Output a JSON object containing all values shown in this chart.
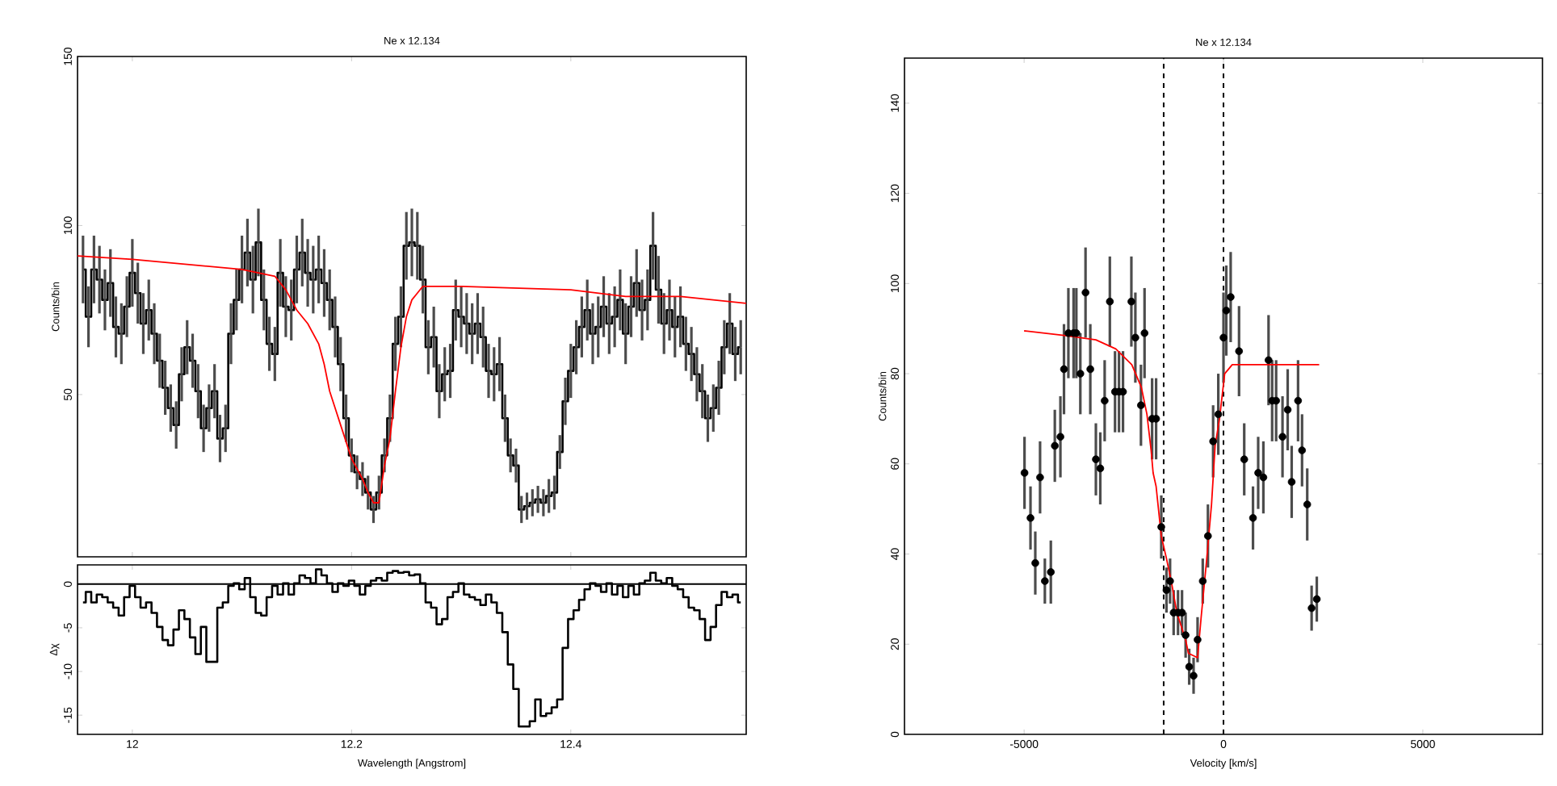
{
  "chart_data": [
    {
      "type": "step",
      "title": "Ne x 12.134",
      "ylabel": "Counts/bin",
      "xlim": [
        11.95,
        12.56
      ],
      "ylim": [
        2,
        150
      ],
      "xticks": [
        12,
        12.2,
        12.4
      ],
      "yticks": [
        50,
        100,
        150
      ],
      "tick_labels": "y",
      "series": [
        {
          "color": "#000000",
          "x": [
            11.955,
            11.96,
            11.965,
            11.97,
            11.975,
            11.98,
            11.985,
            11.99,
            11.995,
            12.0,
            12.005,
            12.01,
            12.015,
            12.02,
            12.025,
            12.03,
            12.035,
            12.04,
            12.045,
            12.05,
            12.055,
            12.06,
            12.065,
            12.07,
            12.075,
            12.08,
            12.085,
            12.09,
            12.095,
            12.1,
            12.105,
            12.11,
            12.115,
            12.12,
            12.125,
            12.13,
            12.135,
            12.14,
            12.145,
            12.15,
            12.155,
            12.16,
            12.165,
            12.17,
            12.175,
            12.18,
            12.185,
            12.19,
            12.195,
            12.2,
            12.205,
            12.21,
            12.215,
            12.22,
            12.225,
            12.23,
            12.235,
            12.24,
            12.245,
            12.25,
            12.255,
            12.26,
            12.265,
            12.27,
            12.275,
            12.28,
            12.285,
            12.29,
            12.295,
            12.3,
            12.305,
            12.31,
            12.315,
            12.32,
            12.325,
            12.33,
            12.335,
            12.34,
            12.345,
            12.35,
            12.355,
            12.36,
            12.365,
            12.37,
            12.375,
            12.38,
            12.385,
            12.39,
            12.395,
            12.4,
            12.405,
            12.41,
            12.415,
            12.42,
            12.425,
            12.43,
            12.435,
            12.44,
            12.445,
            12.45,
            12.455,
            12.46,
            12.465,
            12.47,
            12.475,
            12.48,
            12.485,
            12.49,
            12.495,
            12.5,
            12.505,
            12.51,
            12.515,
            12.52,
            12.525,
            12.53,
            12.535,
            12.54,
            12.545,
            12.55,
            12.555
          ],
          "values": [
            87,
            73,
            87,
            84,
            78,
            83,
            70,
            68,
            76,
            86,
            80,
            71,
            75,
            68,
            60,
            52,
            46,
            41,
            56,
            64,
            60,
            51,
            40,
            46,
            51,
            37,
            40,
            68,
            78,
            87,
            92,
            84,
            95,
            78,
            65,
            62,
            86,
            76,
            75,
            87,
            92,
            86,
            84,
            87,
            83,
            78,
            70,
            59,
            43,
            32,
            27,
            25,
            21,
            16,
            21,
            32,
            43,
            65,
            73,
            94,
            95,
            94,
            84,
            64,
            67,
            51,
            56,
            57,
            75,
            73,
            71,
            68,
            71,
            67,
            57,
            56,
            59,
            43,
            32,
            29,
            16,
            17,
            18,
            19,
            18,
            20,
            21,
            33,
            48,
            57,
            64,
            70,
            75,
            68,
            70,
            76,
            71,
            73,
            78,
            68,
            76,
            83,
            75,
            78,
            94,
            81,
            71,
            75,
            70,
            73,
            65,
            62,
            56,
            51,
            43,
            46,
            52,
            64,
            71,
            62,
            64
          ],
          "errors": [
            10,
            9,
            10,
            10,
            9,
            10,
            9,
            9,
            9,
            10,
            9,
            9,
            9,
            9,
            8,
            8,
            7,
            7,
            8,
            8,
            8,
            8,
            7,
            7,
            8,
            7,
            7,
            9,
            9,
            10,
            10,
            10,
            10,
            9,
            8,
            8,
            10,
            9,
            9,
            10,
            10,
            10,
            10,
            10,
            10,
            9,
            9,
            8,
            7,
            5,
            5,
            5,
            5,
            4,
            5,
            5,
            7,
            8,
            9,
            10,
            10,
            10,
            10,
            8,
            9,
            8,
            8,
            8,
            9,
            9,
            9,
            9,
            9,
            9,
            8,
            8,
            8,
            7,
            5,
            5,
            4,
            4,
            4,
            4,
            4,
            5,
            5,
            5,
            7,
            8,
            8,
            9,
            9,
            9,
            9,
            9,
            9,
            9,
            9,
            9,
            9,
            10,
            9,
            9,
            10,
            10,
            9,
            9,
            9,
            9,
            8,
            8,
            8,
            8,
            7,
            7,
            8,
            8,
            9,
            8,
            8
          ]
        },
        {
          "type": "line",
          "color": "#ff0000",
          "x": [
            11.95,
            12.0,
            12.1,
            12.13,
            12.14,
            12.15,
            12.16,
            12.17,
            12.175,
            12.18,
            12.19,
            12.2,
            12.21,
            12.215,
            12.22,
            12.225,
            12.23,
            12.235,
            12.24,
            12.245,
            12.25,
            12.255,
            12.26,
            12.265,
            12.3,
            12.4,
            12.45,
            12.5,
            12.56
          ],
          "values": [
            91,
            90,
            87,
            85,
            81,
            75,
            71,
            65,
            59,
            51,
            41,
            31,
            25,
            21,
            18,
            18,
            29,
            37,
            51,
            64,
            73,
            78,
            80,
            82,
            82,
            81,
            79,
            79,
            77
          ]
        }
      ]
    },
    {
      "type": "step",
      "xlabel": "Wavelength [Angstrom]",
      "ylabel": "Δχ",
      "xlim": [
        11.95,
        12.56
      ],
      "ylim": [
        -17.2,
        2.2
      ],
      "xticks": [
        12,
        12.2,
        12.4
      ],
      "yticks": [
        -15,
        -10,
        -5,
        0
      ],
      "ref_lines": [
        {
          "axis": "y",
          "value": 0,
          "color": "#000000",
          "line_style": "solid"
        }
      ],
      "series": [
        {
          "color": "#000000",
          "x": [
            11.955,
            11.96,
            11.965,
            11.97,
            11.975,
            11.98,
            11.985,
            11.99,
            11.995,
            12.0,
            12.005,
            12.01,
            12.015,
            12.02,
            12.025,
            12.03,
            12.035,
            12.04,
            12.045,
            12.05,
            12.055,
            12.06,
            12.065,
            12.07,
            12.075,
            12.08,
            12.085,
            12.09,
            12.095,
            12.1,
            12.105,
            12.11,
            12.115,
            12.12,
            12.125,
            12.13,
            12.135,
            12.14,
            12.145,
            12.15,
            12.155,
            12.16,
            12.165,
            12.17,
            12.175,
            12.18,
            12.185,
            12.19,
            12.195,
            12.2,
            12.205,
            12.21,
            12.215,
            12.22,
            12.225,
            12.23,
            12.235,
            12.24,
            12.245,
            12.25,
            12.255,
            12.26,
            12.265,
            12.27,
            12.275,
            12.28,
            12.285,
            12.29,
            12.295,
            12.3,
            12.305,
            12.31,
            12.315,
            12.32,
            12.325,
            12.33,
            12.335,
            12.34,
            12.345,
            12.35,
            12.355,
            12.36,
            12.365,
            12.37,
            12.375,
            12.38,
            12.385,
            12.39,
            12.395,
            12.4,
            12.405,
            12.41,
            12.415,
            12.42,
            12.425,
            12.43,
            12.435,
            12.44,
            12.445,
            12.45,
            12.455,
            12.46,
            12.465,
            12.47,
            12.475,
            12.48,
            12.485,
            12.49,
            12.495,
            12.5,
            12.505,
            12.51,
            12.515,
            12.52,
            12.525,
            12.53,
            12.535,
            12.54,
            12.545,
            12.55,
            12.555
          ],
          "values": [
            -2.1,
            -0.9,
            -2.1,
            -1.2,
            -1.5,
            -2.1,
            -2.7,
            -3.6,
            -1.5,
            -0.2,
            -1.5,
            -2.7,
            -2.1,
            -3.3,
            -4.9,
            -6.4,
            -7.0,
            -5.2,
            -3.0,
            -4.0,
            -6.1,
            -8.0,
            -4.9,
            -8.9,
            -8.9,
            -2.7,
            -2.1,
            -0.2,
            0.1,
            -0.6,
            0.7,
            -1.5,
            -3.3,
            -3.6,
            -1.5,
            -0.2,
            -1.2,
            0.1,
            -1.2,
            0.1,
            1.0,
            0.7,
            0.1,
            1.7,
            1.0,
            0.1,
            -0.9,
            0.1,
            -0.2,
            0.4,
            -0.2,
            -1.2,
            -0.2,
            0.4,
            0.7,
            0.4,
            1.3,
            1.5,
            1.3,
            1.4,
            1.0,
            1.1,
            0.1,
            -2.1,
            -2.7,
            -4.6,
            -4.0,
            -1.5,
            -0.9,
            0.1,
            -1.2,
            -1.5,
            -1.8,
            -2.4,
            -1.2,
            -2.1,
            -3.3,
            -5.5,
            -9.2,
            -12.0,
            -16.3,
            -16.3,
            -15.7,
            -13.2,
            -15.1,
            -14.8,
            -14.1,
            -13.2,
            -7.3,
            -4.0,
            -3.0,
            -1.8,
            -0.6,
            0.1,
            -0.2,
            -0.9,
            0.1,
            -1.2,
            -0.2,
            -1.5,
            -0.2,
            -1.2,
            0.1,
            0.4,
            1.3,
            0.4,
            0.1,
            0.7,
            -0.2,
            -0.6,
            -1.5,
            -2.7,
            -3.0,
            -4.0,
            -6.4,
            -4.9,
            -2.4,
            -0.9,
            -1.5,
            -1.2,
            -2.1
          ]
        }
      ]
    },
    {
      "type": "scatter",
      "title": "Ne x 12.134",
      "xlabel": "Velocity [km/s]",
      "ylabel": "Counts/bin",
      "xlim": [
        -8000,
        8000
      ],
      "ylim": [
        0,
        150
      ],
      "xticks": [
        -5000,
        0,
        5000
      ],
      "yticks": [
        0,
        20,
        40,
        60,
        80,
        100,
        120,
        140
      ],
      "ref_lines": [
        {
          "axis": "x",
          "value": -1500,
          "color": "#000000",
          "line_style": "dashed"
        },
        {
          "axis": "x",
          "value": 0,
          "color": "#000000",
          "line_style": "dashed"
        }
      ],
      "series": [
        {
          "color": "#000000",
          "marker": "circle",
          "x": [
            -4990,
            -4840,
            -4720,
            -4600,
            -4480,
            -4330,
            -4230,
            -4090,
            -4000,
            -3890,
            -3760,
            -3690,
            -3590,
            -3460,
            -3340,
            -3200,
            -3090,
            -2980,
            -2850,
            -2720,
            -2620,
            -2520,
            -2310,
            -2210,
            -2070,
            -1980,
            -1790,
            -1690,
            -1560,
            -1430,
            -1340,
            -1250,
            -1140,
            -1040,
            -950,
            -860,
            -750,
            -650,
            -520,
            -390,
            -260,
            -130,
            0,
            70,
            180,
            390,
            520,
            740,
            870,
            1000,
            1130,
            1220,
            1320,
            1480,
            1610,
            1710,
            1870,
            1970,
            2100,
            2210,
            2340
          ],
          "values": [
            58,
            48,
            38,
            57,
            34,
            36,
            64,
            66,
            81,
            89,
            89,
            89,
            80,
            98,
            81,
            61,
            59,
            74,
            96,
            76,
            76,
            76,
            96,
            88,
            73,
            89,
            70,
            70,
            46,
            32,
            34,
            27,
            27,
            27,
            22,
            15,
            13,
            21,
            34,
            44,
            65,
            71,
            88,
            94,
            97,
            85,
            61,
            48,
            58,
            57,
            83,
            74,
            74,
            66,
            72,
            56,
            74,
            63,
            51,
            28,
            30
          ],
          "errors": [
            8,
            7,
            7,
            8,
            5,
            7,
            8,
            9,
            10,
            10,
            10,
            10,
            9,
            10,
            10,
            8,
            8,
            9,
            10,
            9,
            9,
            9,
            10,
            10,
            9,
            10,
            9,
            9,
            7,
            5,
            5,
            5,
            5,
            5,
            5,
            4,
            4,
            5,
            5,
            7,
            8,
            9,
            10,
            10,
            10,
            10,
            8,
            7,
            8,
            8,
            10,
            9,
            9,
            9,
            9,
            8,
            9,
            8,
            8,
            5,
            5
          ]
        },
        {
          "type": "line",
          "color": "#ff0000",
          "x": [
            -5000,
            -4000,
            -3200,
            -2700,
            -2300,
            -2060,
            -1920,
            -1815,
            -1765,
            -1690,
            -1560,
            -1430,
            -1300,
            -1170,
            -950,
            -880,
            -650,
            -560,
            -430,
            -300,
            -210,
            -100,
            30,
            220,
            2400
          ],
          "values": [
            89.5,
            88.5,
            87.5,
            85.5,
            82,
            77,
            71,
            63,
            58,
            55,
            44,
            39,
            33.5,
            27,
            21,
            18,
            17,
            26,
            38,
            51,
            64,
            70,
            80,
            82,
            82
          ]
        }
      ]
    }
  ]
}
